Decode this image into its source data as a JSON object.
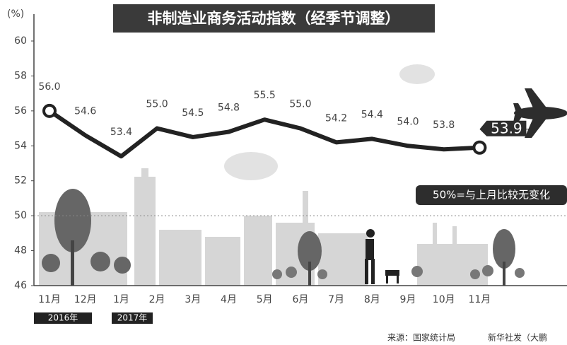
{
  "chart_data": {
    "type": "line",
    "title": "非制造业商务活动指数（经季节调整）",
    "y_unit": "(%)",
    "categories": [
      "11月",
      "12月",
      "1月",
      "2月",
      "3月",
      "4月",
      "5月",
      "6月",
      "7月",
      "8月",
      "9月",
      "10月",
      "11月"
    ],
    "year_labels": [
      "2016年",
      "2017年"
    ],
    "values": [
      56.0,
      54.6,
      53.4,
      55.0,
      54.5,
      54.8,
      55.5,
      55.0,
      54.2,
      54.4,
      54.0,
      53.8,
      53.9
    ],
    "value_labels": [
      "56.0",
      "54.6",
      "53.4",
      "55.0",
      "54.5",
      "54.8",
      "55.5",
      "55.0",
      "54.2",
      "54.4",
      "54.0",
      "53.8",
      "53.9"
    ],
    "color": "#222222",
    "ylim": [
      46,
      60
    ],
    "yticks": [
      46,
      48,
      50,
      52,
      54,
      56,
      58,
      60
    ],
    "reference_line": 50,
    "annotation": "50%=与上月比较无变化",
    "source": "来源：国家统计局",
    "credit": "新华社发（大鹏"
  }
}
